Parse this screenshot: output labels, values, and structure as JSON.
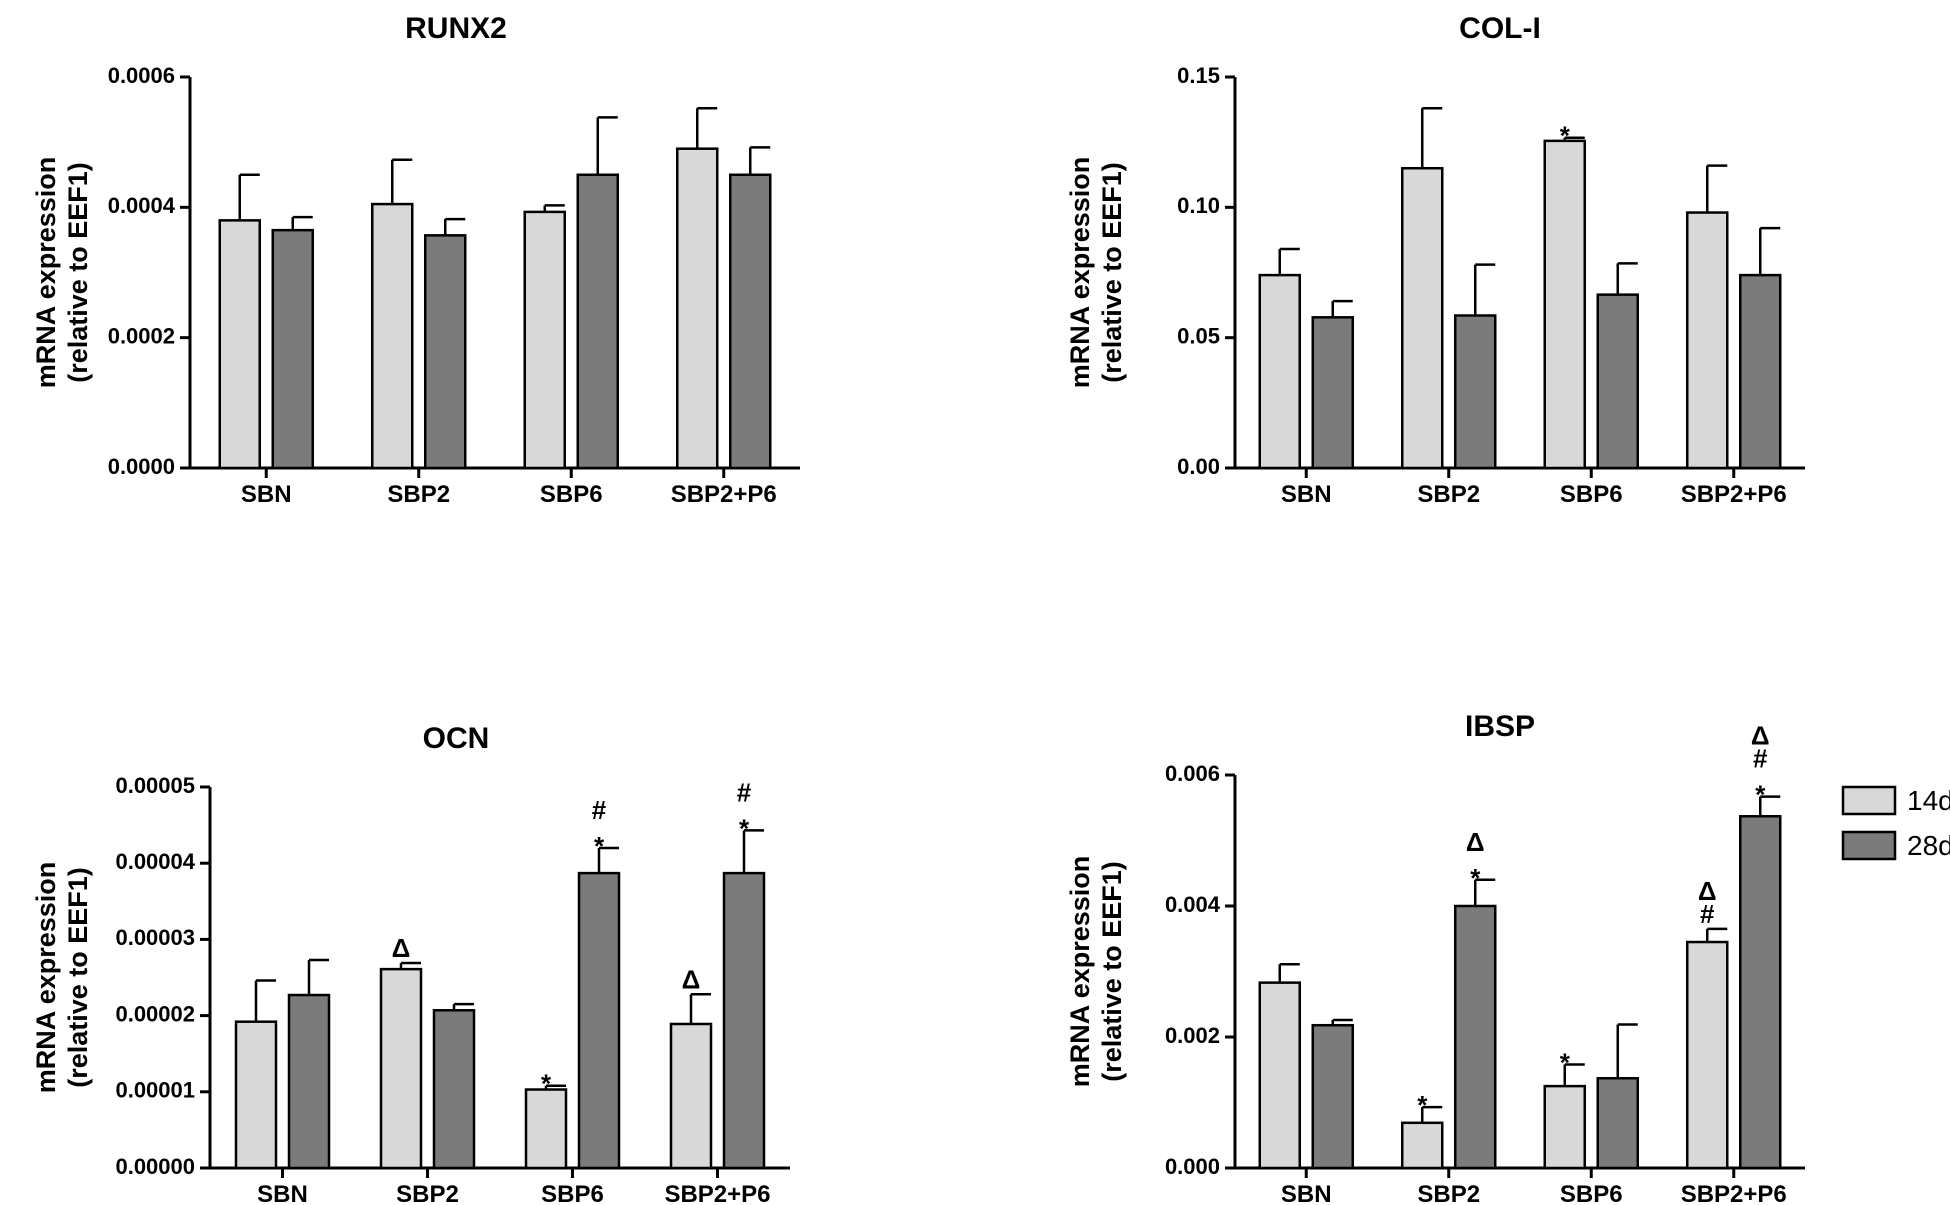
{
  "chart_data": [
    {
      "type": "bar",
      "title": "RUNX2",
      "ylabel": [
        "mRNA expression",
        "(relative to EEF1)"
      ],
      "xlabel": "",
      "categories": [
        "SBN",
        "SBP2",
        "SBP6",
        "SBP2+P6"
      ],
      "ylim": [
        0,
        0.0006
      ],
      "yticks": [
        0,
        0.0002,
        0.0004,
        0.0006
      ],
      "ytick_labels": [
        "0.0000",
        "0.0002",
        "0.0004",
        "0.0006"
      ],
      "series": [
        {
          "name": "14d",
          "color": "#d8d8d8",
          "values": [
            0.00038,
            0.000405,
            0.000393,
            0.00049
          ],
          "errors": [
            7e-05,
            6.8e-05,
            1e-05,
            6.2e-05
          ],
          "annotations": [
            "",
            "",
            "",
            ""
          ]
        },
        {
          "name": "28d",
          "color": "#7b7b7b",
          "values": [
            0.000365,
            0.000357,
            0.00045,
            0.00045
          ],
          "errors": [
            2e-05,
            2.5e-05,
            8.8e-05,
            4.2e-05
          ],
          "annotations": [
            "",
            "",
            "",
            ""
          ]
        }
      ]
    },
    {
      "type": "bar",
      "title": "COL-I",
      "ylabel": [
        "mRNA expression",
        "(relative to EEF1)"
      ],
      "xlabel": "",
      "categories": [
        "SBN",
        "SBP2",
        "SBP6",
        "SBP2+P6"
      ],
      "ylim": [
        0,
        0.15
      ],
      "yticks": [
        0,
        0.05,
        0.1,
        0.15
      ],
      "ytick_labels": [
        "0.00",
        "0.05",
        "0.10",
        "0.15"
      ],
      "series": [
        {
          "name": "14d",
          "color": "#d8d8d8",
          "values": [
            0.074,
            0.115,
            0.1255,
            0.098
          ],
          "errors": [
            0.01,
            0.023,
            0.0012,
            0.018
          ],
          "annotations": [
            "",
            "",
            "*",
            ""
          ]
        },
        {
          "name": "28d",
          "color": "#7b7b7b",
          "values": [
            0.0578,
            0.0585,
            0.0665,
            0.074
          ],
          "errors": [
            0.0062,
            0.0195,
            0.012,
            0.018
          ],
          "annotations": [
            "",
            "",
            "",
            ""
          ]
        }
      ]
    },
    {
      "type": "bar",
      "title": "OCN",
      "ylabel": [
        "mRNA expression",
        "(relative to EEF1)"
      ],
      "xlabel": "",
      "categories": [
        "SBN",
        "SBP2",
        "SBP6",
        "SBP2+P6"
      ],
      "ylim": [
        0,
        5e-05
      ],
      "yticks": [
        0,
        1e-05,
        2e-05,
        3e-05,
        4e-05,
        5e-05
      ],
      "ytick_labels": [
        "0.00000",
        "0.00001",
        "0.00002",
        "0.00003",
        "0.00004",
        "0.00005"
      ],
      "series": [
        {
          "name": "14d",
          "color": "#d8d8d8",
          "values": [
            1.92e-05,
            2.61e-05,
            1.03e-05,
            1.89e-05
          ],
          "errors": [
            5.4e-06,
            8e-07,
            5e-07,
            3.9e-06
          ],
          "annotations": [
            "",
            "Δ",
            "*",
            "Δ"
          ]
        },
        {
          "name": "28d",
          "color": "#7b7b7b",
          "values": [
            2.27e-05,
            2.07e-05,
            3.87e-05,
            3.87e-05
          ],
          "errors": [
            4.6e-06,
            8e-07,
            3.3e-06,
            5.6e-06
          ],
          "annotations": [
            "",
            "",
            "#\n*",
            "#\n*"
          ]
        }
      ]
    },
    {
      "type": "bar",
      "title": "IBSP",
      "ylabel": [
        "mRNA expression",
        "(relative to EEF1)"
      ],
      "xlabel": "",
      "categories": [
        "SBN",
        "SBP2",
        "SBP6",
        "SBP2+P6"
      ],
      "ylim": [
        0,
        0.006
      ],
      "yticks": [
        0,
        0.002,
        0.004,
        0.006
      ],
      "ytick_labels": [
        "0.000",
        "0.002",
        "0.004",
        "0.006"
      ],
      "series": [
        {
          "name": "14d",
          "color": "#d8d8d8",
          "values": [
            0.00283,
            0.00069,
            0.00125,
            0.00345
          ],
          "errors": [
            0.00028,
            0.00024,
            0.00033,
            0.0002
          ],
          "annotations": [
            "",
            "*",
            "*",
            "Δ\n#"
          ]
        },
        {
          "name": "28d",
          "color": "#7b7b7b",
          "values": [
            0.00218,
            0.004,
            0.00137,
            0.00537
          ],
          "errors": [
            8e-05,
            0.0004,
            0.00082,
            0.0003
          ],
          "annotations": [
            "",
            "Δ\n*",
            "",
            "Δ\n#\n*"
          ]
        }
      ]
    }
  ],
  "legend": {
    "position": "right",
    "entries": [
      {
        "label": "14d",
        "color": "#d8d8d8"
      },
      {
        "label": "28d",
        "color": "#7b7b7b"
      }
    ]
  }
}
